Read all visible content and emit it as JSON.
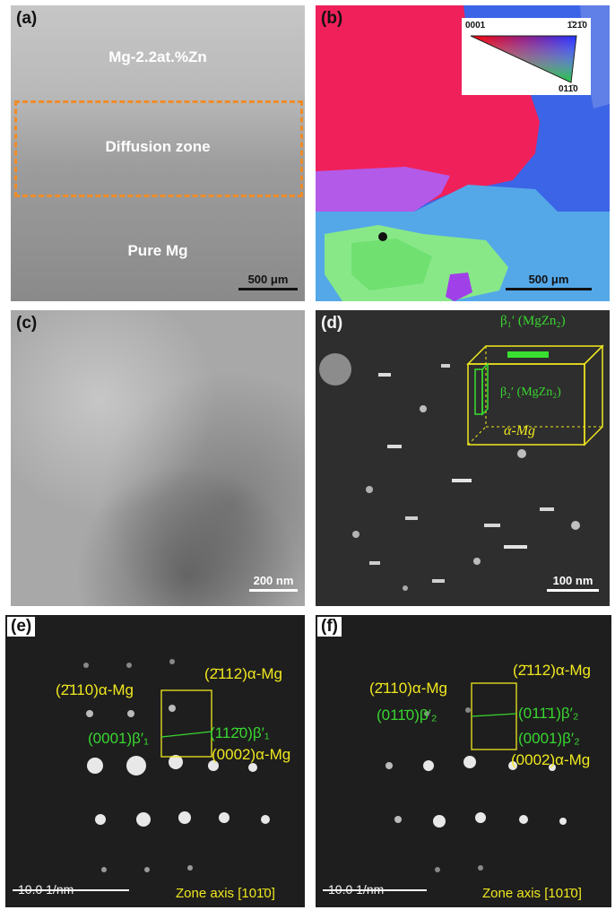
{
  "panels": {
    "a": {
      "label": "(a)",
      "top_text": "Mg-2.2at.%Zn",
      "middle_text": "Diffusion zone",
      "bottom_text": "Pure Mg",
      "scale": "500 μm"
    },
    "b": {
      "label": "(b)",
      "ipf_0001": "0001",
      "ipf_1210": "1̄21̄0",
      "ipf_0110": "011̄0",
      "scale": "500 μm"
    },
    "c": {
      "label": "(c)",
      "scale": "200 nm"
    },
    "d": {
      "label": "(d)",
      "beta1": "β₁′ (MgZn₂)",
      "beta2": "β₂′ (MgZn₂)",
      "matrix": "α-Mg",
      "scale": "100 nm"
    },
    "e": {
      "label": "(e)",
      "spot_2110": "(2̄110)α-Mg",
      "spot_2112": "(2̄112)α-Mg",
      "spot_0001": "(0001)β′₁",
      "spot_1120": "(112̄0)β′₁",
      "spot_0002": "(0002)α-Mg",
      "scale": "10.0  1/nm",
      "zone": "Zone axis [101̄0]"
    },
    "f": {
      "label": "(f)",
      "spot_2110": "(2̄110)α-Mg",
      "spot_2112": "(2̄112)α-Mg",
      "spot_0110": "(011̄0)β′₂",
      "spot_0111": "(011̄1)β′₂",
      "spot_0001": "(0001)β′₂",
      "spot_0002": "(0002)α-Mg",
      "scale": "10.0  1/nm",
      "zone": "Zone axis [101̄0]"
    }
  },
  "colors": {
    "accent_orange": "#f08c28",
    "annotation_yellow": "#f0e81e",
    "annotation_green": "#39d630",
    "ipf_red": "#f0205a",
    "ipf_blue": "#3c64e6"
  }
}
